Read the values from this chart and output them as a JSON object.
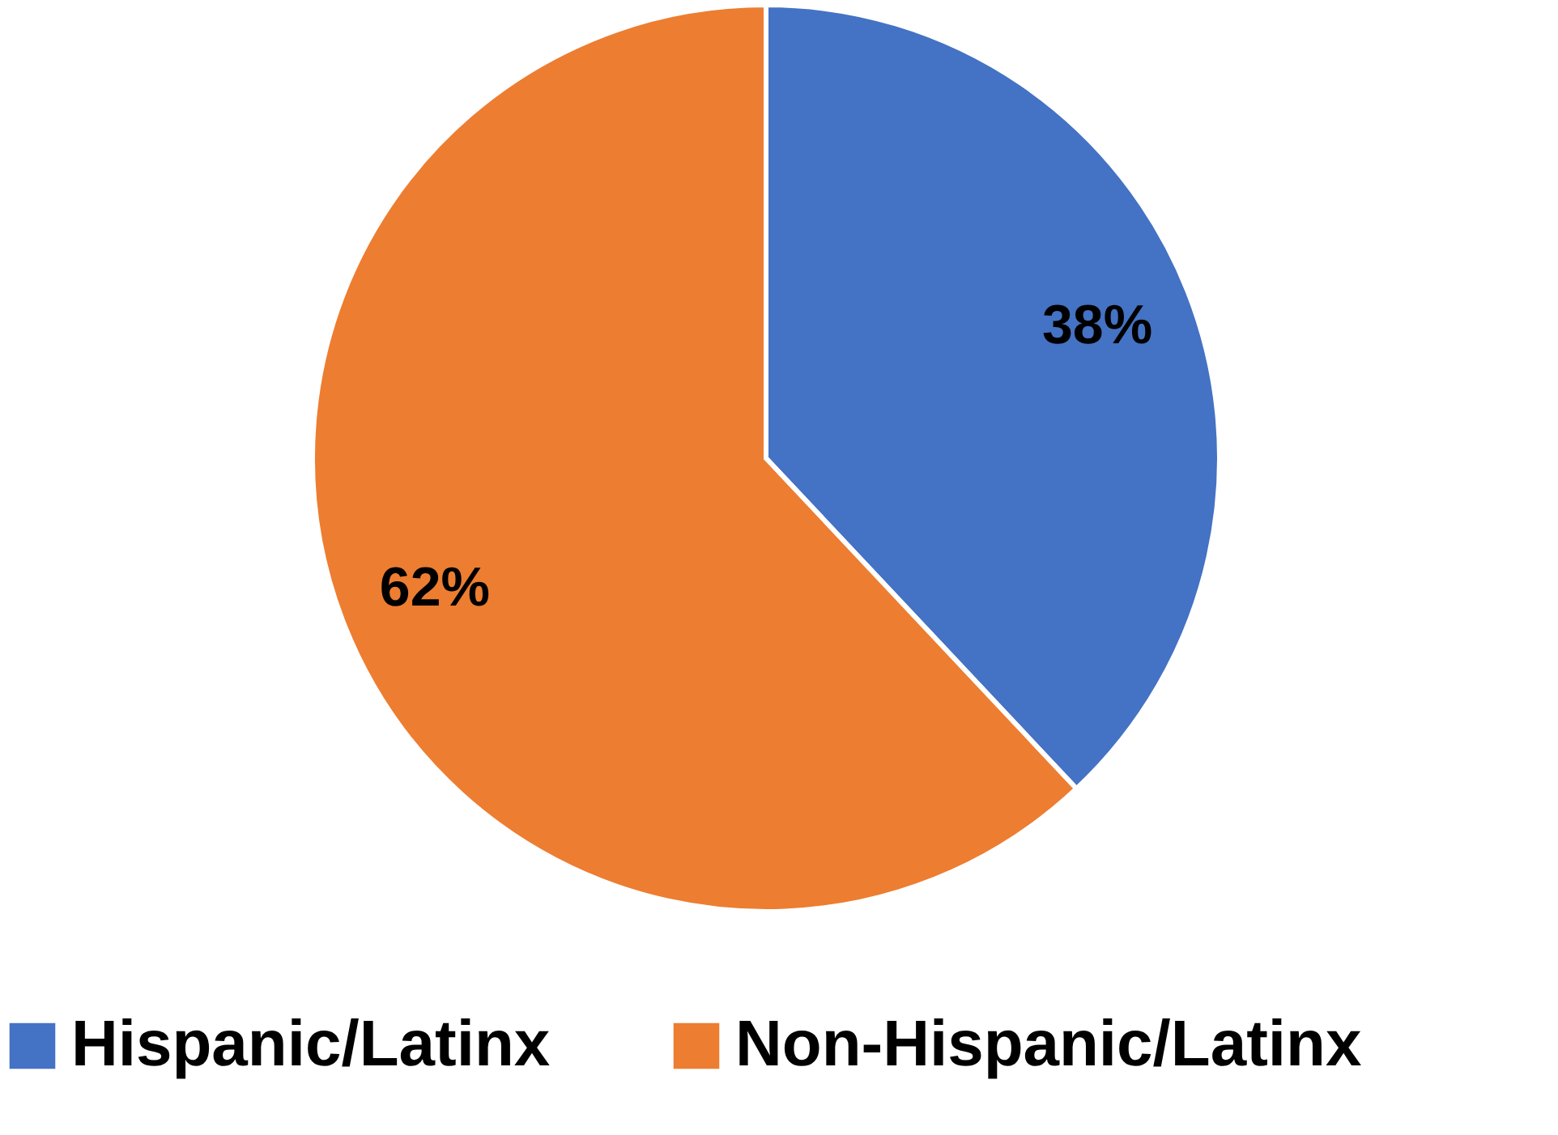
{
  "chart_data": {
    "type": "pie",
    "categories": [
      "Hispanic/Latinx",
      "Non-Hispanic/Latinx"
    ],
    "values": [
      38,
      62
    ],
    "colors": [
      "#4472c4",
      "#ed7d31"
    ],
    "value_labels": [
      "38%",
      "62%"
    ],
    "legend": "bottom"
  }
}
